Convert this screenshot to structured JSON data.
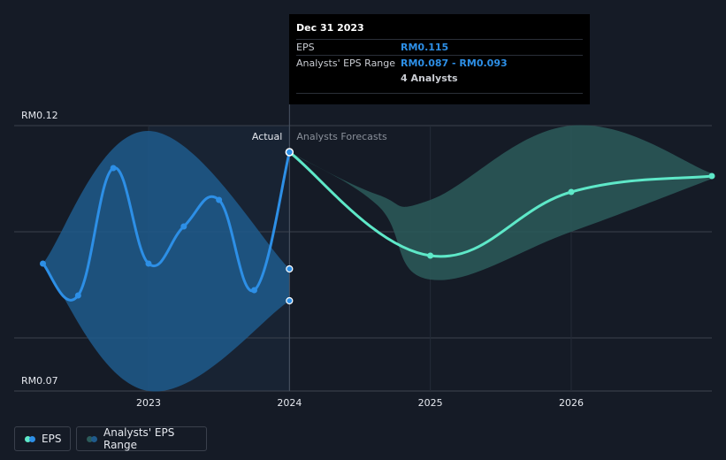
{
  "chart_data": {
    "type": "line",
    "y_labels": {
      "top": "RM0.12",
      "bottom": "RM0.07"
    },
    "ylim": [
      0.07,
      0.12
    ],
    "x_ticks": [
      "2023",
      "2024",
      "2025",
      "2026"
    ],
    "region_labels": {
      "actual": "Actual",
      "forecast": "Analysts Forecasts"
    },
    "series": [
      {
        "name": "EPS",
        "color": "#2d8fe6",
        "points": [
          {
            "x": 2022.25,
            "y": 0.094
          },
          {
            "x": 2022.5,
            "y": 0.088
          },
          {
            "x": 2022.75,
            "y": 0.112
          },
          {
            "x": 2023.0,
            "y": 0.094
          },
          {
            "x": 2023.25,
            "y": 0.101
          },
          {
            "x": 2023.5,
            "y": 0.106
          },
          {
            "x": 2023.75,
            "y": 0.089
          },
          {
            "x": 2024.0,
            "y": 0.115
          }
        ]
      },
      {
        "name": "EPS forecast",
        "color": "#5ee8c8",
        "points": [
          {
            "x": 2024.0,
            "y": 0.115
          },
          {
            "x": 2025.0,
            "y": 0.0955
          },
          {
            "x": 2026.0,
            "y": 0.1075
          },
          {
            "x": 2027.0,
            "y": 0.1105
          }
        ]
      }
    ],
    "range_actual": {
      "x": [
        2022.25,
        2023.0,
        2024.0
      ],
      "upper": [
        0.094,
        0.119,
        0.093
      ],
      "lower": [
        0.094,
        0.07,
        0.087
      ]
    },
    "range_forecast": {
      "x": [
        2024.0,
        2024.625,
        2025.0,
        2026.0,
        2027.0
      ],
      "upper": [
        0.115,
        0.107,
        0.106,
        0.12,
        0.111
      ],
      "lower": [
        0.115,
        0.105,
        0.091,
        0.1,
        0.11
      ]
    },
    "highlight_points": [
      {
        "x": 2024.0,
        "y": 0.093
      },
      {
        "x": 2024.0,
        "y": 0.087
      }
    ],
    "colors": {
      "background": "#151b26",
      "actual_band": "#1f5a8c",
      "forecast_band": "#2c5b5a",
      "grid": "#3a404c",
      "past_shade": "#1b2a3c"
    }
  },
  "tooltip": {
    "date": "Dec 31 2023",
    "eps_label": "EPS",
    "eps_value": "RM0.115",
    "range_label": "Analysts' EPS Range",
    "range_value": "RM0.087 - RM0.093",
    "analysts": "4 Analysts"
  },
  "legend": {
    "eps": "EPS",
    "range": "Analysts' EPS Range"
  }
}
